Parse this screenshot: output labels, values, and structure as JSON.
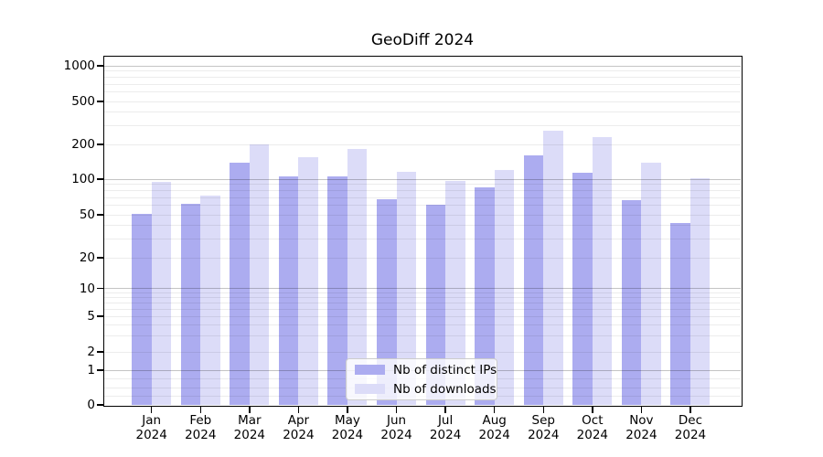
{
  "figure": {
    "background": "#ffffff"
  },
  "chart_data": {
    "type": "bar",
    "title": "GeoDiff 2024",
    "categories": [
      {
        "month": "Jan",
        "year": "2024"
      },
      {
        "month": "Feb",
        "year": "2024"
      },
      {
        "month": "Mar",
        "year": "2024"
      },
      {
        "month": "Apr",
        "year": "2024"
      },
      {
        "month": "May",
        "year": "2024"
      },
      {
        "month": "Jun",
        "year": "2024"
      },
      {
        "month": "Jul",
        "year": "2024"
      },
      {
        "month": "Aug",
        "year": "2024"
      },
      {
        "month": "Sep",
        "year": "2024"
      },
      {
        "month": "Oct",
        "year": "2024"
      },
      {
        "month": "Nov",
        "year": "2024"
      },
      {
        "month": "Dec",
        "year": "2024"
      }
    ],
    "series": [
      {
        "name": "Nb of distinct IPs",
        "color": "#acacf0",
        "values": [
          51,
          62,
          140,
          105,
          106,
          68,
          61,
          86,
          160,
          113,
          66,
          42
        ]
      },
      {
        "name": "Nb of downloads",
        "color": "#dcdcf8",
        "values": [
          95,
          72,
          200,
          156,
          184,
          115,
          96,
          120,
          266,
          235,
          139,
          102
        ]
      }
    ],
    "y_scale": "symlog",
    "y_ticks": [
      0,
      1,
      2,
      5,
      10,
      20,
      50,
      100,
      200,
      500,
      1000
    ],
    "ylim": [
      0,
      1200
    ],
    "xlabel": "",
    "ylabel": "",
    "grid": "both",
    "legend_position": "lower center inside axes",
    "colors": {
      "bar_distinct_ips": "#acacf0",
      "bar_downloads": "#dcdcf8",
      "major_gridline": "#c4c4c4",
      "minor_gridline": "#ececec",
      "axis_frame": "#000000",
      "text": "#000000"
    }
  }
}
